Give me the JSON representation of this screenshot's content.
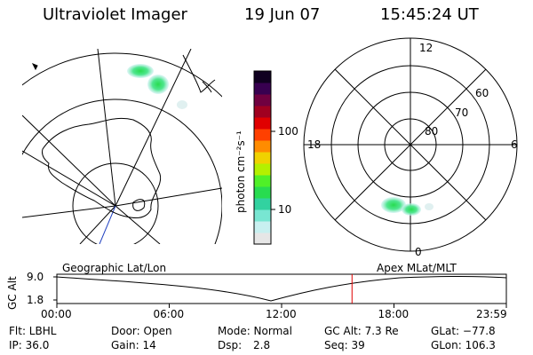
{
  "header": {
    "title": "Ultraviolet Imager",
    "date": "19 Jun 07",
    "time": "15:45:24 UT"
  },
  "colorbar": {
    "unit_label": "photon cm⁻²s⁻¹",
    "tick_100": "100",
    "tick_10": "10",
    "colors": [
      "#e6e6e6",
      "#c8f0f0",
      "#78e6d2",
      "#32d2a0",
      "#28dc50",
      "#50f028",
      "#b4f000",
      "#f0d200",
      "#ff8c00",
      "#ff4000",
      "#e00000",
      "#a00020",
      "#700040",
      "#380050",
      "#100020"
    ]
  },
  "polar_plot": {
    "label_12": "12",
    "label_18": "18",
    "label_6": "6",
    "label_0": "0",
    "label_60": "60",
    "label_70": "70",
    "label_80": "80"
  },
  "timeline": {
    "left_label": "Geographic Lat/Lon",
    "right_label": "Apex MLat/MLT",
    "axis_title": "GC Alt",
    "y_max": "9.0",
    "y_min": "1.8",
    "ticks": [
      "00:00",
      "06:00",
      "12:00",
      "18:00",
      "23:59"
    ],
    "marker_color": "#e00000",
    "marker_time_hours": 15.76
  },
  "info": {
    "row1": {
      "flt": "Flt: LBHL",
      "door": "Door: Open",
      "mode": "Mode: Normal",
      "gcalt": "GC Alt: 7.3 Re",
      "glat": "GLat: −77.8"
    },
    "row2": {
      "ip": "IP: 36.0",
      "gain": "Gain: 14",
      "dsp_label": "Dsp:",
      "dsp_value": "2.8",
      "seq": "Seq: 39",
      "glon": "GLon: 106.3"
    }
  }
}
